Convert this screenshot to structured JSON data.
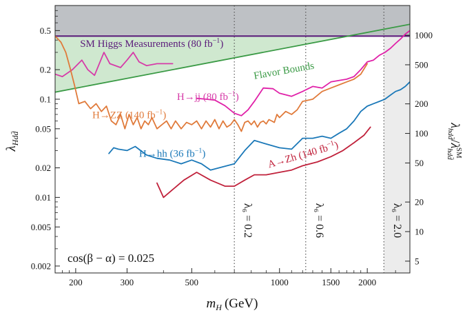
{
  "chart_data": {
    "type": "line",
    "title": "",
    "xlabel_var": "m",
    "xlabel_sub": "H",
    "xlabel_unit": "(GeV)",
    "ylabel_var": "λ",
    "ylabel_sub": "Hdd̄",
    "y2label_num": "λ",
    "y2label_num_sub": "hdd̄",
    "y2label_den": "λ",
    "y2label_den_sub": "hdd̄",
    "y2label_den_sup": "SM",
    "xscale": "log",
    "yscale": "log",
    "xlim": [
      170,
      2800
    ],
    "ylim": [
      0.0017,
      0.9
    ],
    "x_ticks": [
      200,
      300,
      500,
      1000,
      1500,
      2000
    ],
    "x_tick_labels": [
      "200",
      "300",
      "500",
      "1000",
      "1500",
      "2000"
    ],
    "y_ticks": [
      0.002,
      0.005,
      0.01,
      0.02,
      0.05,
      0.1,
      0.2,
      0.5
    ],
    "y_tick_labels": [
      "0.002",
      "0.005",
      "0.01",
      "0.02",
      "0.05",
      "0.1",
      "0.2",
      "0.5"
    ],
    "y2_scale_factor": 2230,
    "y2_ticks": [
      5,
      10,
      20,
      50,
      100,
      200,
      500,
      1000
    ],
    "y2_tick_labels": [
      "5",
      "10",
      "20",
      "50",
      "100",
      "200",
      "500",
      "1000"
    ],
    "annotation": "cos(β − α) = 0.025",
    "grid": false,
    "excluded_top_region": {
      "y_from": 0.45,
      "color": "#b9bcc0"
    },
    "excluded_right_region": {
      "x_from": 2280,
      "color": "#ececec"
    },
    "green_region": {
      "color": "#cfe8cf"
    },
    "lambda6_lines": [
      {
        "x": 700,
        "label": "λ₆ = 0.2"
      },
      {
        "x": 1230,
        "label": "λ₆ = 0.6"
      },
      {
        "x": 2280,
        "label": "λ₆ = 2.0"
      }
    ],
    "series": [
      {
        "name": "SM Higgs Measurements (80 fb⁻¹)",
        "color": "#5a1a7a",
        "x": [
          170,
          2800
        ],
        "y": [
          0.44,
          0.44
        ]
      },
      {
        "name": "Flavor Bounds",
        "color": "#3a9a45",
        "x": [
          170,
          2800
        ],
        "y": [
          0.118,
          0.58
        ]
      },
      {
        "name": "SM Higgs Measurements pink",
        "color": "#d63ba8",
        "x": [
          170,
          180,
          195,
          210,
          220,
          232,
          250,
          262,
          285,
          300,
          315,
          330,
          350,
          380,
          430
        ],
        "y": [
          0.18,
          0.17,
          0.2,
          0.25,
          0.2,
          0.175,
          0.3,
          0.23,
          0.21,
          0.25,
          0.3,
          0.24,
          0.22,
          0.23,
          0.23
        ]
      },
      {
        "name": "H→jj (80 fb⁻¹)",
        "color": "#e020a8",
        "x": [
          520,
          560,
          600,
          650,
          700,
          740,
          780,
          820,
          880,
          950,
          1000,
          1100,
          1200,
          1300,
          1400,
          1500,
          1600,
          1700,
          1800,
          1900,
          2000,
          2100,
          2200,
          2300,
          2400,
          2500,
          2600,
          2700,
          2800
        ],
        "y": [
          0.102,
          0.1,
          0.098,
          0.086,
          0.072,
          0.068,
          0.078,
          0.095,
          0.13,
          0.128,
          0.115,
          0.107,
          0.12,
          0.135,
          0.13,
          0.15,
          0.155,
          0.16,
          0.17,
          0.2,
          0.24,
          0.25,
          0.28,
          0.3,
          0.33,
          0.37,
          0.41,
          0.46,
          0.5
        ]
      },
      {
        "name": "H→ZZ (140 fb⁻¹)",
        "color": "#e07a3a",
        "x": [
          170,
          178,
          185,
          192,
          198,
          205,
          215,
          225,
          235,
          245,
          255,
          265,
          275,
          285,
          295,
          305,
          315,
          325,
          335,
          345,
          355,
          365,
          380,
          395,
          410,
          425,
          440,
          460,
          480,
          500,
          520,
          540,
          560,
          580,
          600,
          620,
          640,
          660,
          680,
          700,
          720,
          740,
          760,
          780,
          800,
          820,
          840,
          860,
          880,
          900,
          920,
          940,
          960,
          980,
          1000,
          1050,
          1100,
          1150,
          1200,
          1300,
          1400,
          1500,
          1600,
          1700,
          1800,
          1900,
          2000
        ],
        "y": [
          0.44,
          0.38,
          0.3,
          0.2,
          0.14,
          0.09,
          0.095,
          0.08,
          0.09,
          0.075,
          0.085,
          0.06,
          0.055,
          0.07,
          0.05,
          0.07,
          0.055,
          0.065,
          0.05,
          0.06,
          0.055,
          0.065,
          0.05,
          0.055,
          0.06,
          0.05,
          0.06,
          0.05,
          0.058,
          0.055,
          0.06,
          0.05,
          0.06,
          0.052,
          0.062,
          0.05,
          0.06,
          0.052,
          0.055,
          0.062,
          0.055,
          0.047,
          0.058,
          0.06,
          0.055,
          0.06,
          0.052,
          0.058,
          0.06,
          0.056,
          0.062,
          0.06,
          0.058,
          0.07,
          0.065,
          0.075,
          0.07,
          0.078,
          0.095,
          0.1,
          0.12,
          0.13,
          0.14,
          0.15,
          0.16,
          0.18,
          0.23
        ]
      },
      {
        "name": "H→hh (36 fb⁻¹)",
        "color": "#1a78b8",
        "x": [
          260,
          270,
          280,
          300,
          320,
          350,
          380,
          420,
          460,
          500,
          540,
          580,
          620,
          660,
          700,
          760,
          820,
          900,
          1000,
          1100,
          1200,
          1300,
          1400,
          1500,
          1600,
          1700,
          1800,
          1900,
          2000,
          2100,
          2200,
          2300,
          2400,
          2500,
          2600,
          2700,
          2800
        ],
        "y": [
          0.028,
          0.032,
          0.031,
          0.03,
          0.033,
          0.027,
          0.025,
          0.024,
          0.022,
          0.024,
          0.022,
          0.019,
          0.02,
          0.021,
          0.022,
          0.03,
          0.038,
          0.035,
          0.032,
          0.031,
          0.04,
          0.04,
          0.042,
          0.04,
          0.045,
          0.05,
          0.06,
          0.075,
          0.085,
          0.09,
          0.095,
          0.1,
          0.11,
          0.12,
          0.125,
          0.135,
          0.15
        ]
      },
      {
        "name": "A→Zh (140 fb⁻¹)",
        "color": "#c0203a",
        "x": [
          380,
          400,
          430,
          470,
          520,
          580,
          650,
          700,
          760,
          820,
          900,
          1000,
          1100,
          1200,
          1350,
          1500,
          1650,
          1800,
          1950,
          2050
        ],
        "y": [
          0.014,
          0.01,
          0.012,
          0.015,
          0.018,
          0.015,
          0.013,
          0.013,
          0.015,
          0.017,
          0.017,
          0.018,
          0.019,
          0.021,
          0.023,
          0.026,
          0.03,
          0.036,
          0.043,
          0.052
        ]
      }
    ],
    "series_labels": [
      {
        "text": "SM Higgs Measurements (80 fb",
        "sup": "−1",
        "close": ")",
        "x": 207,
        "y": 0.34,
        "color": "#5a1a7a",
        "rotate": 0
      },
      {
        "text": "Flavor Bounds",
        "sup": "",
        "close": "",
        "x": 820,
        "y": 0.16,
        "color": "#3a9a45",
        "rotate": -10
      },
      {
        "text": "H→jj (80 fb",
        "sup": "−1",
        "close": ")",
        "x": 445,
        "y": 0.098,
        "color": "#d63ba8",
        "rotate": 0
      },
      {
        "text": "H→ZZ (140 fb",
        "sup": "−1",
        "close": ")",
        "x": 228,
        "y": 0.064,
        "color": "#e07a3a",
        "rotate": 0
      },
      {
        "text": "H→hh (36 fb",
        "sup": "−1",
        "close": ")",
        "x": 330,
        "y": 0.026,
        "color": "#1a78b8",
        "rotate": 0
      },
      {
        "text": "A→Zh (140 fb",
        "sup": "−1",
        "close": ")",
        "x": 920,
        "y": 0.02,
        "color": "#c0203a",
        "rotate": -16
      }
    ]
  }
}
